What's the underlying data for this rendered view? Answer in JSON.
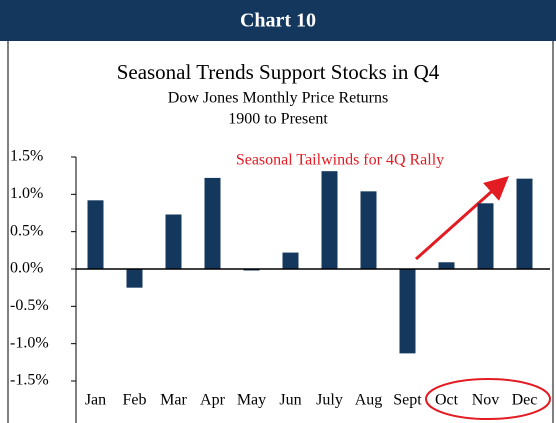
{
  "header": "Chart 10",
  "chart_data": {
    "type": "bar",
    "title": "Seasonal Trends Support Stocks in Q4",
    "subtitle": [
      "Dow Jones Monthly Price Returns",
      "1900 to Present"
    ],
    "annotation": "Seasonal Tailwinds for 4Q Rally",
    "categories": [
      "Jan",
      "Feb",
      "Mar",
      "Apr",
      "May",
      "Jun",
      "July",
      "Aug",
      "Sept",
      "Oct",
      "Nov",
      "Dec"
    ],
    "values": [
      0.92,
      -0.25,
      0.73,
      1.22,
      -0.02,
      0.22,
      1.31,
      1.04,
      -1.13,
      0.09,
      0.88,
      1.21
    ],
    "color": "#14375e",
    "ylim": [
      -1.5,
      1.5
    ],
    "yticks": [
      {
        "value": 1.5,
        "label": "1.5%"
      },
      {
        "value": 1.0,
        "label": "1.0%"
      },
      {
        "value": 0.5,
        "label": "0.5%"
      },
      {
        "value": 0.0,
        "label": "0.0%"
      },
      {
        "value": -0.5,
        "label": "-0.5%"
      },
      {
        "value": -1.0,
        "label": "-1.0%"
      },
      {
        "value": -1.5,
        "label": "-1.5%"
      }
    ]
  }
}
